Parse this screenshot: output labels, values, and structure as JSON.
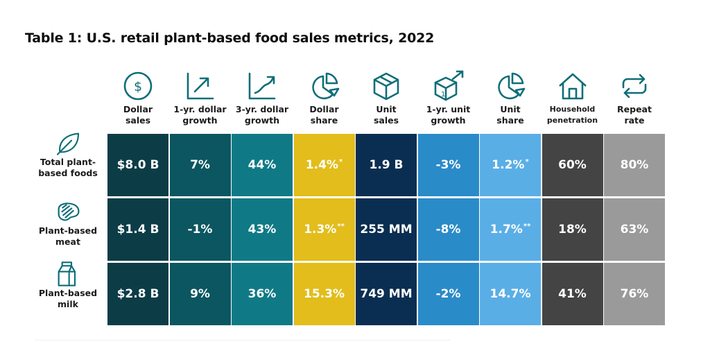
{
  "title": "Table 1: U.S. retail plant-based food sales metrics, 2022",
  "colors": {
    "icon": "#0e6e78",
    "label": "#1b1b1b",
    "columns": [
      "#0c3d47",
      "#0b5660",
      "#0f7a86",
      "#e2bd1c",
      "#0a2e52",
      "#2a8bc9",
      "#5aaee6",
      "#444444",
      "#9a9a9a"
    ]
  },
  "columns": [
    {
      "label": "Dollar\nsales",
      "icon": "dollar-coin-icon"
    },
    {
      "label": "1-yr. dollar\ngrowth",
      "icon": "growth-arrow-icon"
    },
    {
      "label": "3-yr. dollar\ngrowth",
      "icon": "growth-curve-icon"
    },
    {
      "label": "Dollar\nshare",
      "icon": "pie-chart-icon"
    },
    {
      "label": "Unit\nsales",
      "icon": "box-icon"
    },
    {
      "label": "1-yr. unit\ngrowth",
      "icon": "box-arrow-icon"
    },
    {
      "label": "Unit\nshare",
      "icon": "pie-chart-icon"
    },
    {
      "label": "Household\npenetration",
      "icon": "house-icon"
    },
    {
      "label": "Repeat\nrate",
      "icon": "repeat-icon"
    }
  ],
  "rows": [
    {
      "label": "Total plant-\nbased foods",
      "icon": "leaf-icon",
      "cells": [
        {
          "v": "$8.0 B",
          "s": ""
        },
        {
          "v": "7%",
          "s": ""
        },
        {
          "v": "44%",
          "s": ""
        },
        {
          "v": "1.4%",
          "s": "*"
        },
        {
          "v": "1.9 B",
          "s": ""
        },
        {
          "v": "-3%",
          "s": ""
        },
        {
          "v": "1.2%",
          "s": "*"
        },
        {
          "v": "60%",
          "s": ""
        },
        {
          "v": "80%",
          "s": ""
        }
      ]
    },
    {
      "label": "Plant-based\nmeat",
      "icon": "steak-icon",
      "cells": [
        {
          "v": "$1.4 B",
          "s": ""
        },
        {
          "v": "-1%",
          "s": ""
        },
        {
          "v": "43%",
          "s": ""
        },
        {
          "v": "1.3%",
          "s": "**"
        },
        {
          "v": "255 MM",
          "s": ""
        },
        {
          "v": "-8%",
          "s": ""
        },
        {
          "v": "1.7%",
          "s": "**"
        },
        {
          "v": "18%",
          "s": ""
        },
        {
          "v": "63%",
          "s": ""
        }
      ]
    },
    {
      "label": "Plant-based\nmilk",
      "icon": "milk-carton-icon",
      "cells": [
        {
          "v": "$2.8 B",
          "s": ""
        },
        {
          "v": "9%",
          "s": ""
        },
        {
          "v": "36%",
          "s": ""
        },
        {
          "v": "15.3%",
          "s": ""
        },
        {
          "v": "749 MM",
          "s": ""
        },
        {
          "v": "-2%",
          "s": ""
        },
        {
          "v": "14.7%",
          "s": ""
        },
        {
          "v": "41%",
          "s": ""
        },
        {
          "v": "76%",
          "s": ""
        }
      ]
    }
  ]
}
